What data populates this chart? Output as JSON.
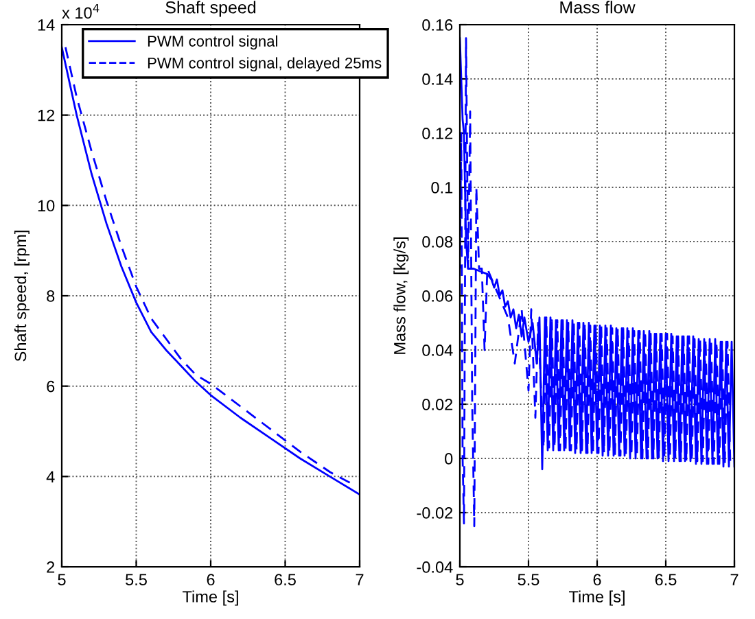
{
  "chart_data": [
    {
      "type": "line",
      "title": "Shaft speed",
      "xlabel": "Time [s]",
      "ylabel": "Shaft speed, [rpm]",
      "annotations": [
        "x 10$^{4}$"
      ],
      "xlim": [
        5,
        7
      ],
      "xticks": [
        5,
        5.5,
        6,
        6.5,
        7
      ],
      "ylim": [
        2,
        14
      ],
      "yticks": [
        2,
        4,
        6,
        8,
        10,
        12,
        14
      ],
      "grid": true,
      "legend": "top right",
      "marker": "none",
      "series": [
        {
          "name": "PWM control signal",
          "color": "#0000ff",
          "line_style": "solid",
          "x": [
            5.0,
            5.1,
            5.2,
            5.3,
            5.4,
            5.5,
            5.6,
            5.7,
            5.8,
            5.9,
            6.0,
            6.2,
            6.4,
            6.6,
            6.8,
            7.0
          ],
          "values": [
            13.5,
            12.0,
            10.7,
            9.6,
            8.65,
            7.85,
            7.2,
            6.8,
            6.45,
            6.1,
            5.8,
            5.3,
            4.85,
            4.4,
            4.0,
            3.6
          ]
        },
        {
          "name": "PWM control signal, delayed 25ms",
          "color": "#0000ff",
          "line_style": "dashed",
          "x": [
            5.025,
            5.1,
            5.2,
            5.3,
            5.4,
            5.5,
            5.6,
            5.7,
            5.8,
            5.9,
            6.0,
            6.2,
            6.4,
            6.6,
            6.8,
            6.97
          ],
          "values": [
            13.5,
            12.4,
            11.2,
            10.1,
            9.1,
            8.2,
            7.5,
            7.05,
            6.6,
            6.25,
            6.05,
            5.55,
            5.05,
            4.55,
            4.1,
            3.8
          ]
        }
      ]
    },
    {
      "type": "line",
      "title": "Mass flow",
      "xlabel": "Time [s]",
      "ylabel": "Mass flow, [kg/s]",
      "xlim": [
        5,
        7
      ],
      "xticks": [
        5,
        5.5,
        6,
        6.5,
        7
      ],
      "ylim": [
        -0.04,
        0.16
      ],
      "yticks": [
        -0.04,
        -0.02,
        0,
        0.02,
        0.04,
        0.06,
        0.08,
        0.1,
        0.12,
        0.14,
        0.16
      ],
      "grid": true,
      "marker": "none",
      "series": [
        {
          "color": "#0000ff",
          "line_style": "solid",
          "x": [
            5.0,
            5.01,
            5.02,
            5.03,
            5.045,
            5.06,
            5.1,
            5.15,
            5.2,
            5.23,
            5.25,
            5.27,
            5.29,
            5.31,
            5.33,
            5.35,
            5.37,
            5.39,
            5.41,
            5.43,
            5.45,
            5.47,
            5.5,
            5.53,
            5.56,
            5.58,
            5.6,
            5.62,
            5.64,
            5.66,
            5.68,
            5.7,
            5.72,
            5.74,
            5.76,
            5.78,
            5.8,
            5.82,
            5.84,
            5.86,
            5.88,
            5.9,
            5.92,
            5.94,
            5.96,
            5.98,
            6.0,
            6.02,
            6.04,
            6.06,
            6.08,
            6.1,
            6.12,
            6.14,
            6.16,
            6.18,
            6.2,
            6.22,
            6.24,
            6.26,
            6.28,
            6.3,
            6.32,
            6.34,
            6.36,
            6.38,
            6.4,
            6.42,
            6.44,
            6.46,
            6.48,
            6.5,
            6.52,
            6.54,
            6.56,
            6.58,
            6.6,
            6.62,
            6.64,
            6.66,
            6.68,
            6.7,
            6.72,
            6.74,
            6.76,
            6.78,
            6.8,
            6.82,
            6.84,
            6.86,
            6.88,
            6.9,
            6.92,
            6.94,
            6.96,
            6.98,
            7.0
          ],
          "values": [
            0.155,
            0.14,
            0.125,
            0.12,
            0.08,
            0.07,
            0.07,
            0.069,
            0.068,
            0.066,
            0.063,
            0.066,
            0.06,
            0.062,
            0.056,
            0.058,
            0.052,
            0.055,
            0.048,
            0.053,
            0.045,
            0.052,
            0.043,
            0.05,
            0.035,
            0.052,
            -0.004,
            0.052,
            0.003,
            0.052,
            0.003,
            0.051,
            0.003,
            0.051,
            0.003,
            0.051,
            0.003,
            0.051,
            0.002,
            0.05,
            0.002,
            0.05,
            0.002,
            0.05,
            0.002,
            0.049,
            0.002,
            0.049,
            0.001,
            0.049,
            0.001,
            0.049,
            0.001,
            0.048,
            0.001,
            0.048,
            0.001,
            0.048,
            0.0,
            0.048,
            0.0,
            0.047,
            0.0,
            0.047,
            0.0,
            0.047,
            0.0,
            0.046,
            0.0,
            0.046,
            -0.001,
            0.046,
            -0.001,
            0.046,
            -0.001,
            0.045,
            -0.001,
            0.045,
            -0.001,
            0.045,
            -0.001,
            0.045,
            -0.002,
            0.044,
            -0.002,
            0.044,
            -0.002,
            0.044,
            -0.002,
            0.044,
            -0.002,
            0.043,
            -0.003,
            0.043,
            -0.003,
            0.043,
            -0.003
          ]
        },
        {
          "color": "#0000ff",
          "line_style": "dashed",
          "x": [
            5.0,
            5.01,
            5.02,
            5.03,
            5.045,
            5.06,
            5.075,
            5.09,
            5.105,
            5.12,
            5.14,
            5.16,
            5.18,
            5.2,
            5.25,
            5.3,
            5.35,
            5.4,
            5.45,
            5.5,
            5.52,
            5.55,
            5.57,
            5.61,
            5.63,
            5.65,
            5.67,
            5.69,
            5.71,
            5.73,
            5.75,
            5.77,
            5.79,
            5.81,
            5.83,
            5.85,
            5.87,
            5.89,
            5.91,
            5.93,
            5.95,
            5.97,
            5.99,
            6.01,
            6.03,
            6.05,
            6.07,
            6.09,
            6.11,
            6.13,
            6.15,
            6.17,
            6.19,
            6.21,
            6.23,
            6.25,
            6.27,
            6.29,
            6.31,
            6.33,
            6.35,
            6.37,
            6.39,
            6.41,
            6.43,
            6.45,
            6.47,
            6.49,
            6.51,
            6.53,
            6.55,
            6.57,
            6.59,
            6.61,
            6.63,
            6.65,
            6.67,
            6.69,
            6.71,
            6.73,
            6.75,
            6.77,
            6.79,
            6.81,
            6.83,
            6.85,
            6.87,
            6.89,
            6.91,
            6.93,
            6.95,
            6.97
          ],
          "values": [
            0.07,
            0.12,
            0.0,
            -0.024,
            0.155,
            0.07,
            0.128,
            0.02,
            -0.025,
            0.1,
            0.07,
            0.07,
            0.04,
            0.07,
            0.064,
            0.058,
            0.052,
            0.035,
            0.055,
            0.025,
            0.055,
            0.015,
            0.05,
            0.004,
            0.052,
            0.004,
            0.051,
            0.004,
            0.051,
            0.003,
            0.051,
            0.003,
            0.05,
            0.003,
            0.05,
            0.003,
            0.05,
            0.003,
            0.05,
            0.002,
            0.049,
            0.002,
            0.049,
            0.002,
            0.049,
            0.002,
            0.048,
            0.002,
            0.048,
            0.001,
            0.048,
            0.001,
            0.048,
            0.001,
            0.047,
            0.001,
            0.047,
            0.001,
            0.047,
            0.0,
            0.047,
            0.0,
            0.046,
            0.0,
            0.046,
            0.0,
            0.046,
            0.0,
            0.046,
            0.0,
            0.045,
            0.0,
            0.045,
            -0.001,
            0.045,
            -0.001,
            0.045,
            -0.001,
            0.044,
            -0.001,
            0.044,
            -0.001,
            0.044,
            -0.002,
            0.044,
            -0.002,
            0.043,
            -0.002,
            0.043,
            -0.002,
            0.043,
            -0.002
          ]
        }
      ]
    }
  ]
}
